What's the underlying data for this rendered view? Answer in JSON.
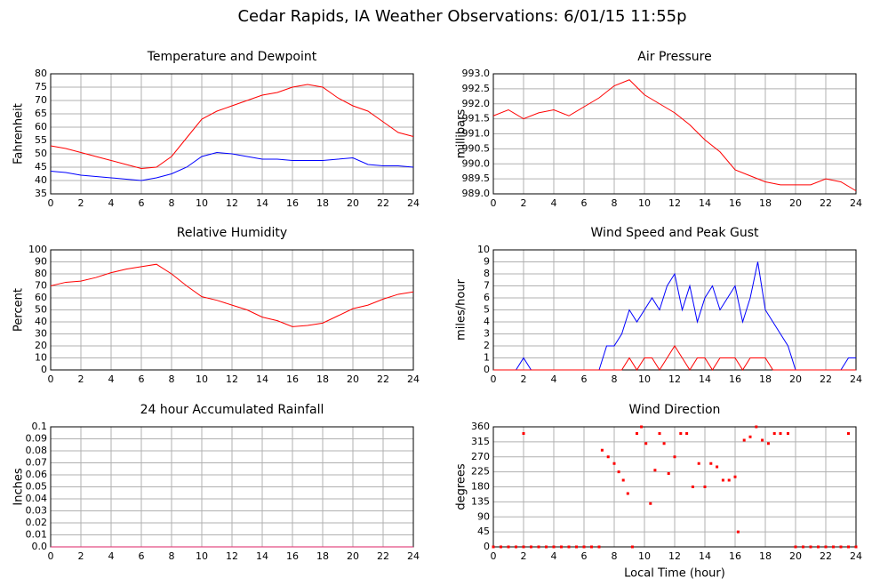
{
  "title": "Cedar Rapids, IA Weather Observations: 6/01/15 11:55p",
  "chart_data": [
    {
      "type": "line",
      "title": "Temperature and Dewpoint",
      "ylabel": "Fahrenheit",
      "x": [
        0,
        1,
        2,
        3,
        4,
        5,
        6,
        7,
        8,
        9,
        10,
        11,
        12,
        13,
        14,
        15,
        16,
        17,
        18,
        19,
        20,
        21,
        22,
        23,
        24
      ],
      "series": [
        {
          "name": "Temperature",
          "color": "#ff0000",
          "values": [
            53,
            52,
            50.5,
            49,
            47.5,
            46,
            44.5,
            45,
            49,
            56,
            63,
            66,
            68,
            70,
            72,
            73,
            75,
            76,
            75,
            71,
            68,
            66,
            62,
            58,
            56.5
          ]
        },
        {
          "name": "Dewpoint",
          "color": "#0000ff",
          "values": [
            43.5,
            43,
            42,
            41.5,
            41,
            40.5,
            40,
            41,
            42.5,
            45,
            49,
            50.5,
            50,
            49,
            48,
            48,
            47.5,
            47.5,
            47.5,
            48,
            48.5,
            46,
            45.5,
            45.5,
            45
          ]
        }
      ],
      "xlim": [
        0,
        24
      ],
      "xticks": [
        0,
        2,
        4,
        6,
        8,
        10,
        12,
        14,
        16,
        18,
        20,
        22,
        24
      ],
      "ylim": [
        35,
        80
      ],
      "yticks": [
        35,
        40,
        45,
        50,
        55,
        60,
        65,
        70,
        75,
        80
      ],
      "grid": true
    },
    {
      "type": "line",
      "title": "Air Pressure",
      "ylabel": "millibars",
      "x": [
        0,
        1,
        2,
        3,
        4,
        5,
        6,
        7,
        8,
        9,
        10,
        11,
        12,
        13,
        14,
        15,
        16,
        17,
        18,
        19,
        20,
        21,
        22,
        23,
        24
      ],
      "series": [
        {
          "name": "Pressure",
          "color": "#ff0000",
          "values": [
            991.6,
            991.8,
            991.5,
            991.7,
            991.8,
            991.6,
            991.9,
            992.2,
            992.6,
            992.8,
            992.3,
            992.0,
            991.7,
            991.3,
            990.8,
            990.4,
            989.8,
            989.6,
            989.4,
            989.3,
            989.3,
            989.3,
            989.5,
            989.4,
            989.1
          ]
        }
      ],
      "xlim": [
        0,
        24
      ],
      "xticks": [
        0,
        2,
        4,
        6,
        8,
        10,
        12,
        14,
        16,
        18,
        20,
        22,
        24
      ],
      "ylim": [
        989,
        993
      ],
      "yticks": [
        {
          "value": 989,
          "label": "989.0"
        },
        989.5,
        {
          "value": 990,
          "label": "990.0"
        },
        990.5,
        {
          "value": 991,
          "label": "991.0"
        },
        991.5,
        {
          "value": 992,
          "label": "992.0"
        },
        992.5,
        {
          "value": 993,
          "label": "993.0"
        }
      ],
      "grid": true
    },
    {
      "type": "line",
      "title": "Relative Humidity",
      "ylabel": "Percent",
      "x": [
        0,
        1,
        2,
        3,
        4,
        5,
        6,
        7,
        8,
        9,
        10,
        11,
        12,
        13,
        14,
        15,
        16,
        17,
        18,
        19,
        20,
        21,
        22,
        23,
        24
      ],
      "series": [
        {
          "name": "Relative Humidity",
          "color": "#ff0000",
          "values": [
            70,
            73,
            74,
            77,
            81,
            84,
            86,
            88,
            80,
            70,
            61,
            58,
            54,
            50,
            44,
            41,
            36,
            37,
            39,
            45,
            51,
            54,
            59,
            63,
            65
          ]
        }
      ],
      "xlim": [
        0,
        24
      ],
      "xticks": [
        0,
        2,
        4,
        6,
        8,
        10,
        12,
        14,
        16,
        18,
        20,
        22,
        24
      ],
      "ylim": [
        0,
        100
      ],
      "yticks": [
        0,
        10,
        20,
        30,
        40,
        50,
        60,
        70,
        80,
        90,
        100
      ],
      "grid": true
    },
    {
      "type": "line",
      "title": "Wind Speed and Peak Gust",
      "ylabel": "miles/hour",
      "x": [
        0,
        0.5,
        1,
        1.5,
        2,
        2.5,
        3,
        3.5,
        4,
        4.5,
        5,
        5.5,
        6,
        6.5,
        7,
        7.5,
        8,
        8.5,
        9,
        9.5,
        10,
        10.5,
        11,
        11.5,
        12,
        12.5,
        13,
        13.5,
        14,
        14.5,
        15,
        15.5,
        16,
        16.5,
        17,
        17.5,
        18,
        18.5,
        19,
        19.5,
        20,
        20.5,
        21,
        21.5,
        22,
        22.5,
        23,
        23.5,
        24
      ],
      "series": [
        {
          "name": "Wind Speed",
          "color": "#0000ff",
          "values": [
            0,
            0,
            0,
            0,
            1,
            0,
            0,
            0,
            0,
            0,
            0,
            0,
            0,
            0,
            0,
            2,
            2,
            3,
            5,
            4,
            5,
            6,
            5,
            7,
            8,
            5,
            7,
            4,
            6,
            7,
            5,
            6,
            7,
            4,
            6,
            9,
            5,
            4,
            3,
            2,
            0,
            0,
            0,
            0,
            0,
            0,
            0,
            1,
            1
          ]
        },
        {
          "name": "Peak Gust",
          "color": "#ff0000",
          "values": [
            0,
            0,
            0,
            0,
            0,
            0,
            0,
            0,
            0,
            0,
            0,
            0,
            0,
            0,
            0,
            0,
            0,
            0,
            1,
            0,
            1,
            1,
            0,
            1,
            2,
            1,
            0,
            1,
            1,
            0,
            1,
            1,
            1,
            0,
            1,
            1,
            1,
            0,
            0,
            0,
            0,
            0,
            0,
            0,
            0,
            0,
            0,
            0,
            0
          ]
        }
      ],
      "xlim": [
        0,
        24
      ],
      "xticks": [
        0,
        2,
        4,
        6,
        8,
        10,
        12,
        14,
        16,
        18,
        20,
        22,
        24
      ],
      "ylim": [
        0,
        10
      ],
      "yticks": [
        0,
        1,
        2,
        3,
        4,
        5,
        6,
        7,
        8,
        9,
        10
      ],
      "grid": true
    },
    {
      "type": "line",
      "title": "24 hour Accumulated Rainfall",
      "ylabel": "Inches",
      "x": [
        0,
        24
      ],
      "series": [
        {
          "name": "Rainfall",
          "color": "#dd2266",
          "values": [
            0,
            0
          ]
        }
      ],
      "xlim": [
        0,
        24
      ],
      "xticks": [
        0,
        2,
        4,
        6,
        8,
        10,
        12,
        14,
        16,
        18,
        20,
        22,
        24
      ],
      "ylim": [
        0,
        0.1
      ],
      "yticks": [
        {
          "value": 0,
          "label": "0.0"
        },
        0.01,
        0.02,
        0.03,
        0.04,
        0.05,
        0.06,
        0.07,
        0.08,
        0.09,
        0.1
      ],
      "grid": true
    },
    {
      "type": "scatter",
      "title": "Wind Direction",
      "ylabel": "degrees",
      "xlabel": "Local Time (hour)",
      "x": [
        0,
        0.5,
        1,
        1.5,
        2,
        2,
        2.5,
        3,
        3.5,
        4,
        4.5,
        5,
        5.5,
        6,
        6.5,
        7,
        7.2,
        7.6,
        8,
        8.3,
        8.6,
        8.9,
        9.2,
        9.5,
        9.8,
        10.1,
        10.4,
        10.7,
        11,
        11.3,
        11.6,
        12,
        12.4,
        12.8,
        13.2,
        13.6,
        14,
        14.4,
        14.8,
        15.2,
        15.6,
        16,
        16.2,
        16.6,
        17,
        17.4,
        17.8,
        18.2,
        18.6,
        19,
        19.5,
        20,
        20.5,
        21,
        21.5,
        22,
        22.5,
        23,
        23.5,
        23.5,
        24
      ],
      "series": [
        {
          "name": "Wind Direction",
          "color": "#ff0000",
          "values": [
            0,
            0,
            0,
            0,
            0,
            340,
            0,
            0,
            0,
            0,
            0,
            0,
            0,
            0,
            0,
            0,
            290,
            270,
            250,
            225,
            200,
            160,
            0,
            340,
            360,
            310,
            130,
            230,
            340,
            310,
            220,
            270,
            340,
            340,
            180,
            250,
            180,
            250,
            240,
            200,
            200,
            210,
            45,
            320,
            330,
            360,
            320,
            310,
            340,
            340,
            340,
            0,
            0,
            0,
            0,
            0,
            0,
            0,
            0,
            340,
            0
          ]
        }
      ],
      "xlim": [
        0,
        24
      ],
      "xticks": [
        0,
        2,
        4,
        6,
        8,
        10,
        12,
        14,
        16,
        18,
        20,
        22,
        24
      ],
      "ylim": [
        0,
        360
      ],
      "yticks": [
        0,
        45,
        90,
        135,
        180,
        225,
        270,
        315,
        360
      ],
      "grid": true
    }
  ]
}
